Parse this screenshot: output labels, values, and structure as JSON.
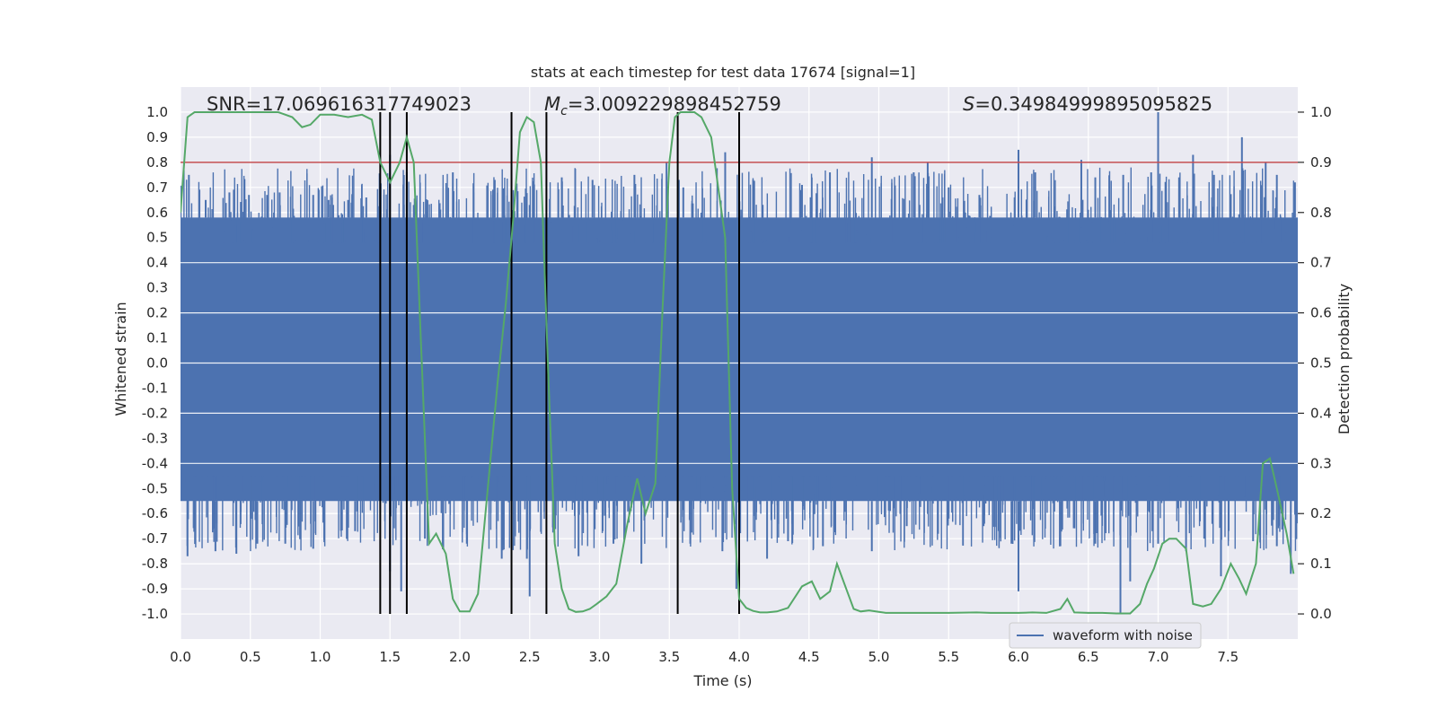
{
  "chart_data": {
    "type": "line",
    "title": "stats at each timestep for test data 17674 [signal=1]",
    "xlabel": "Time (s)",
    "ylabel": "Whitened strain",
    "y2label": "Detection probability",
    "xlim": [
      0.0,
      8.0
    ],
    "ylim": [
      -1.1,
      1.1
    ],
    "y2lim": [
      -0.05,
      1.05
    ],
    "x_ticks": [
      "0.0",
      "0.5",
      "1.0",
      "1.5",
      "2.0",
      "2.5",
      "3.0",
      "3.5",
      "4.0",
      "4.5",
      "5.0",
      "5.5",
      "6.0",
      "6.5",
      "7.0",
      "7.5"
    ],
    "y_ticks": [
      "1.0",
      "0.9",
      "0.8",
      "0.7",
      "0.6",
      "0.5",
      "0.4",
      "0.3",
      "0.2",
      "0.1",
      "0.0",
      "-0.1",
      "-0.2",
      "-0.3",
      "-0.4",
      "-0.5",
      "-0.6",
      "-0.7",
      "-0.8",
      "-0.9",
      "-1.0"
    ],
    "y2_ticks": [
      "1.0",
      "0.9",
      "0.8",
      "0.7",
      "0.6",
      "0.5",
      "0.4",
      "0.3",
      "0.2",
      "0.1",
      "0.0"
    ],
    "annotations": {
      "snr": "SNR=17.069616317749023",
      "mc_sym": "M",
      "mc_sub": "c",
      "mc_val": "=3.009229898452759",
      "s_sym": "S",
      "s_val": "=0.34984999895095825"
    },
    "legend": {
      "label": "waveform with noise",
      "location": "lower right"
    },
    "threshold": {
      "y2": 0.9,
      "color": "#c44e52"
    },
    "vlines": [
      1.43,
      1.5,
      1.62,
      2.37,
      2.62,
      3.56,
      4.0
    ],
    "waveform": {
      "name": "waveform with noise",
      "color": "#4c72b0",
      "band_upper": 0.58,
      "band_lower": -0.55,
      "spikes_up": [
        [
          0.06,
          0.75
        ],
        [
          0.18,
          0.65
        ],
        [
          0.35,
          0.68
        ],
        [
          0.49,
          0.67
        ],
        [
          0.62,
          0.67
        ],
        [
          0.71,
          0.68
        ],
        [
          0.95,
          0.67
        ],
        [
          1.06,
          0.65
        ],
        [
          1.2,
          0.65
        ],
        [
          1.33,
          0.66
        ],
        [
          1.5,
          0.83
        ],
        [
          1.62,
          0.76
        ],
        [
          1.67,
          0.63
        ],
        [
          1.95,
          0.76
        ],
        [
          2.25,
          0.73
        ],
        [
          2.38,
          0.61
        ],
        [
          2.5,
          0.63
        ],
        [
          2.73,
          0.74
        ],
        [
          2.95,
          0.73
        ],
        [
          3.25,
          0.75
        ],
        [
          3.48,
          0.8
        ],
        [
          3.6,
          0.7
        ],
        [
          3.9,
          0.84
        ],
        [
          4.1,
          0.73
        ],
        [
          4.45,
          0.71
        ],
        [
          4.65,
          0.76
        ],
        [
          4.95,
          0.82
        ],
        [
          5.25,
          0.76
        ],
        [
          5.35,
          0.8
        ],
        [
          5.5,
          0.7
        ],
        [
          5.72,
          0.67
        ],
        [
          6.0,
          0.85
        ],
        [
          6.12,
          0.76
        ],
        [
          6.45,
          0.81
        ],
        [
          6.55,
          0.74
        ],
        [
          6.75,
          0.75
        ],
        [
          6.95,
          0.76
        ],
        [
          7.0,
          1.0
        ],
        [
          7.15,
          0.74
        ],
        [
          7.25,
          0.83
        ],
        [
          7.4,
          0.75
        ],
        [
          7.6,
          0.9
        ],
        [
          7.77,
          0.8
        ],
        [
          7.85,
          0.75
        ],
        [
          7.98,
          0.72
        ]
      ],
      "spikes_down": [
        [
          0.05,
          -0.77
        ],
        [
          0.25,
          -0.75
        ],
        [
          0.4,
          -0.76
        ],
        [
          0.55,
          -0.72
        ],
        [
          0.75,
          -0.72
        ],
        [
          0.95,
          -0.74
        ],
        [
          1.25,
          -0.67
        ],
        [
          1.5,
          -0.83
        ],
        [
          1.58,
          -0.91
        ],
        [
          1.75,
          -0.7
        ],
        [
          2.05,
          -0.72
        ],
        [
          2.3,
          -0.78
        ],
        [
          2.48,
          -0.78
        ],
        [
          2.5,
          -0.93
        ],
        [
          2.85,
          -0.77
        ],
        [
          3.1,
          -0.72
        ],
        [
          3.3,
          -0.8
        ],
        [
          3.65,
          -0.72
        ],
        [
          3.88,
          -0.75
        ],
        [
          3.98,
          -0.9
        ],
        [
          4.2,
          -0.78
        ],
        [
          4.35,
          -0.71
        ],
        [
          4.6,
          -0.73
        ],
        [
          4.95,
          -0.75
        ],
        [
          5.2,
          -0.65
        ],
        [
          5.5,
          -0.62
        ],
        [
          5.75,
          -0.65
        ],
        [
          5.95,
          -0.72
        ],
        [
          6.0,
          -0.91
        ],
        [
          6.3,
          -0.73
        ],
        [
          6.55,
          -0.72
        ],
        [
          6.73,
          -1.0
        ],
        [
          6.8,
          -0.87
        ],
        [
          7.0,
          -0.72
        ],
        [
          7.2,
          -0.75
        ],
        [
          7.33,
          -0.7
        ],
        [
          7.45,
          -0.85
        ],
        [
          7.68,
          -0.71
        ],
        [
          7.85,
          -0.73
        ],
        [
          7.95,
          -0.84
        ]
      ]
    },
    "probability": {
      "name": "detection probability",
      "color": "#55a868",
      "x": [
        0.0,
        0.05,
        0.1,
        0.15,
        0.2,
        0.3,
        0.4,
        0.5,
        0.6,
        0.7,
        0.8,
        0.87,
        0.93,
        1.0,
        1.1,
        1.2,
        1.3,
        1.37,
        1.43,
        1.5,
        1.57,
        1.62,
        1.67,
        1.72,
        1.78,
        1.83,
        1.9,
        1.95,
        2.0,
        2.07,
        2.13,
        2.2,
        2.27,
        2.33,
        2.38,
        2.43,
        2.48,
        2.53,
        2.58,
        2.63,
        2.68,
        2.73,
        2.78,
        2.83,
        2.88,
        2.93,
        2.98,
        3.05,
        3.12,
        3.2,
        3.27,
        3.33,
        3.4,
        3.45,
        3.5,
        3.54,
        3.58,
        3.63,
        3.68,
        3.73,
        3.8,
        3.9,
        3.95,
        4.0,
        4.05,
        4.1,
        4.15,
        4.2,
        4.27,
        4.35,
        4.45,
        4.52,
        4.58,
        4.65,
        4.7,
        4.78,
        4.82,
        4.87,
        4.93,
        5.0,
        5.05,
        5.13,
        5.2,
        5.3,
        5.5,
        5.7,
        5.8,
        5.9,
        6.0,
        6.1,
        6.2,
        6.3,
        6.35,
        6.4,
        6.5,
        6.6,
        6.7,
        6.8,
        6.87,
        6.92,
        6.97,
        7.03,
        7.08,
        7.13,
        7.2,
        7.25,
        7.32,
        7.38,
        7.45,
        7.52,
        7.58,
        7.63,
        7.7,
        7.75,
        7.8,
        7.85,
        7.92,
        7.97
      ],
      "y": [
        0.8,
        0.99,
        1.0,
        1.0,
        1.0,
        1.0,
        1.0,
        1.0,
        1.0,
        1.0,
        0.99,
        0.97,
        0.975,
        0.995,
        0.995,
        0.99,
        0.995,
        0.985,
        0.9,
        0.86,
        0.9,
        0.95,
        0.9,
        0.55,
        0.14,
        0.16,
        0.12,
        0.03,
        0.005,
        0.005,
        0.04,
        0.25,
        0.46,
        0.62,
        0.78,
        0.96,
        0.99,
        0.98,
        0.9,
        0.5,
        0.14,
        0.05,
        0.01,
        0.004,
        0.005,
        0.01,
        0.02,
        0.035,
        0.06,
        0.18,
        0.27,
        0.2,
        0.26,
        0.6,
        0.9,
        0.99,
        1.0,
        1.0,
        1.0,
        0.99,
        0.95,
        0.75,
        0.25,
        0.03,
        0.012,
        0.006,
        0.003,
        0.003,
        0.005,
        0.012,
        0.055,
        0.065,
        0.03,
        0.045,
        0.1,
        0.04,
        0.01,
        0.005,
        0.007,
        0.004,
        0.002,
        0.002,
        0.002,
        0.002,
        0.002,
        0.003,
        0.002,
        0.002,
        0.002,
        0.003,
        0.002,
        0.01,
        0.03,
        0.003,
        0.002,
        0.002,
        0.001,
        0.001,
        0.02,
        0.06,
        0.09,
        0.14,
        0.15,
        0.15,
        0.13,
        0.02,
        0.015,
        0.02,
        0.05,
        0.1,
        0.07,
        0.04,
        0.1,
        0.3,
        0.31,
        0.25,
        0.16,
        0.08
      ]
    }
  }
}
